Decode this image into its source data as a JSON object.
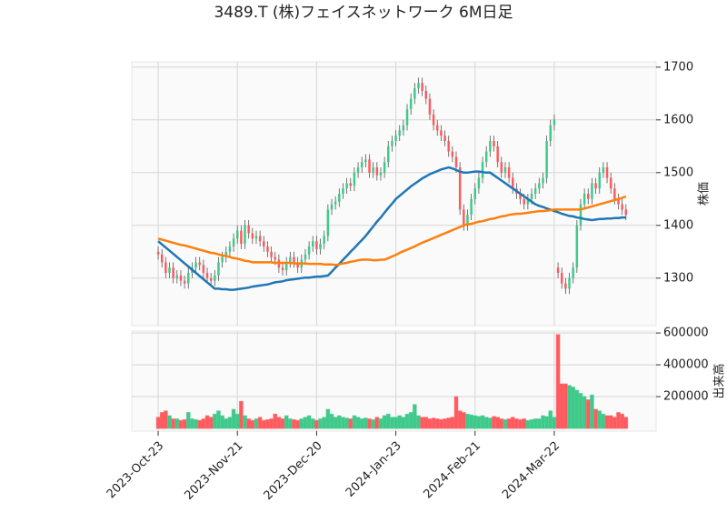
{
  "chart_data": {
    "type": "candlestick",
    "title": "3489.T (株)フェイスネットワーク 6M日足",
    "ylabel": "株価",
    "ylim": [
      1210,
      1710
    ],
    "yticks": [
      1300,
      1400,
      1500,
      1600,
      1700
    ],
    "xlim": [
      -7,
      132
    ],
    "xticks": [
      {
        "value": 0,
        "label": "2023-Oct-23"
      },
      {
        "value": 21,
        "label": "2023-Nov-21"
      },
      {
        "value": 42,
        "label": "2023-Dec-20"
      },
      {
        "value": 63,
        "label": "2024-Jan-23"
      },
      {
        "value": 84,
        "label": "2024-Feb-21"
      },
      {
        "value": 105,
        "label": "2024-Mar-22"
      }
    ],
    "grid": true,
    "up_color": "#3fc98a",
    "down_color": "#ff5a5f",
    "open": [
      1350,
      1345,
      1330,
      1310,
      1320,
      1300,
      1305,
      1295,
      1290,
      1310,
      1320,
      1330,
      1325,
      1310,
      1300,
      1295,
      1305,
      1330,
      1340,
      1350,
      1360,
      1375,
      1390,
      1365,
      1400,
      1385,
      1375,
      1380,
      1370,
      1360,
      1350,
      1340,
      1335,
      1320,
      1315,
      1330,
      1340,
      1330,
      1320,
      1335,
      1345,
      1360,
      1370,
      1355,
      1365,
      1380,
      1430,
      1440,
      1445,
      1460,
      1470,
      1480,
      1475,
      1500,
      1510,
      1520,
      1525,
      1500,
      1510,
      1495,
      1500,
      1520,
      1550,
      1560,
      1570,
      1580,
      1590,
      1620,
      1640,
      1660,
      1670,
      1655,
      1640,
      1610,
      1590,
      1580,
      1570,
      1560,
      1540,
      1530,
      1510,
      1430,
      1400,
      1420,
      1450,
      1470,
      1490,
      1520,
      1540,
      1560,
      1550,
      1520,
      1500,
      1510,
      1490,
      1470,
      1460,
      1450,
      1440,
      1450,
      1460,
      1470,
      1480,
      1490,
      1560,
      1590,
      1320,
      1310,
      1290,
      1280,
      1300,
      1320,
      1400,
      1440,
      1460,
      1450,
      1480,
      1470,
      1500,
      1510,
      1490,
      1470,
      1450,
      1440,
      1430
    ],
    "high": [
      1360,
      1355,
      1340,
      1330,
      1330,
      1315,
      1315,
      1305,
      1320,
      1330,
      1340,
      1340,
      1335,
      1320,
      1310,
      1315,
      1340,
      1350,
      1360,
      1370,
      1385,
      1400,
      1400,
      1410,
      1410,
      1395,
      1390,
      1390,
      1380,
      1370,
      1360,
      1350,
      1345,
      1330,
      1340,
      1350,
      1350,
      1340,
      1345,
      1355,
      1370,
      1380,
      1380,
      1375,
      1390,
      1440,
      1450,
      1455,
      1470,
      1480,
      1490,
      1490,
      1510,
      1520,
      1530,
      1535,
      1535,
      1520,
      1520,
      1510,
      1530,
      1560,
      1570,
      1580,
      1590,
      1600,
      1630,
      1650,
      1670,
      1680,
      1680,
      1665,
      1650,
      1620,
      1600,
      1590,
      1580,
      1570,
      1550,
      1540,
      1520,
      1440,
      1430,
      1460,
      1480,
      1500,
      1530,
      1550,
      1570,
      1570,
      1560,
      1530,
      1520,
      1520,
      1500,
      1480,
      1470,
      1460,
      1460,
      1470,
      1480,
      1490,
      1500,
      1570,
      1600,
      1610,
      1330,
      1320,
      1300,
      1310,
      1330,
      1410,
      1450,
      1470,
      1470,
      1490,
      1490,
      1510,
      1520,
      1520,
      1500,
      1480,
      1460,
      1450,
      1440
    ],
    "low": [
      1335,
      1320,
      1300,
      1300,
      1290,
      1290,
      1285,
      1280,
      1280,
      1300,
      1310,
      1315,
      1300,
      1290,
      1285,
      1285,
      1295,
      1320,
      1330,
      1340,
      1350,
      1365,
      1355,
      1355,
      1375,
      1365,
      1365,
      1360,
      1350,
      1340,
      1330,
      1325,
      1310,
      1305,
      1305,
      1320,
      1320,
      1310,
      1310,
      1325,
      1335,
      1350,
      1345,
      1345,
      1355,
      1370,
      1420,
      1430,
      1435,
      1450,
      1460,
      1465,
      1465,
      1490,
      1500,
      1510,
      1490,
      1490,
      1485,
      1485,
      1490,
      1510,
      1540,
      1550,
      1560,
      1570,
      1580,
      1610,
      1630,
      1650,
      1645,
      1630,
      1600,
      1580,
      1570,
      1560,
      1550,
      1530,
      1520,
      1500,
      1420,
      1390,
      1390,
      1410,
      1440,
      1460,
      1480,
      1510,
      1530,
      1540,
      1510,
      1490,
      1490,
      1480,
      1460,
      1450,
      1440,
      1430,
      1430,
      1440,
      1450,
      1460,
      1470,
      1480,
      1550,
      1580,
      1300,
      1280,
      1270,
      1270,
      1290,
      1310,
      1390,
      1430,
      1440,
      1440,
      1460,
      1460,
      1490,
      1480,
      1460,
      1440,
      1430,
      1420,
      1410
    ],
    "close": [
      1345,
      1330,
      1310,
      1320,
      1300,
      1305,
      1295,
      1290,
      1310,
      1320,
      1330,
      1325,
      1310,
      1300,
      1295,
      1305,
      1330,
      1340,
      1350,
      1360,
      1375,
      1390,
      1365,
      1400,
      1385,
      1375,
      1380,
      1370,
      1360,
      1350,
      1340,
      1335,
      1320,
      1315,
      1330,
      1340,
      1330,
      1320,
      1335,
      1345,
      1360,
      1370,
      1355,
      1365,
      1380,
      1430,
      1440,
      1445,
      1460,
      1470,
      1480,
      1475,
      1500,
      1510,
      1520,
      1525,
      1500,
      1510,
      1495,
      1500,
      1520,
      1550,
      1560,
      1570,
      1580,
      1590,
      1620,
      1640,
      1660,
      1670,
      1655,
      1640,
      1610,
      1590,
      1580,
      1570,
      1560,
      1540,
      1530,
      1510,
      1430,
      1400,
      1420,
      1450,
      1470,
      1490,
      1520,
      1540,
      1560,
      1550,
      1520,
      1500,
      1510,
      1490,
      1470,
      1460,
      1450,
      1440,
      1450,
      1460,
      1470,
      1480,
      1490,
      1560,
      1590,
      1600,
      1310,
      1290,
      1280,
      1300,
      1320,
      1400,
      1440,
      1460,
      1450,
      1480,
      1470,
      1500,
      1510,
      1490,
      1470,
      1450,
      1440,
      1430,
      1420
    ],
    "moving_averages": [
      {
        "color": "#1f77b4",
        "values": [
          1370,
          1364,
          1358,
          1352,
          1346,
          1340,
          1334,
          1328,
          1322,
          1316,
          1310,
          1304,
          1298,
          1292,
          1286,
          1280,
          1280,
          1279,
          1279,
          1278,
          1278,
          1279,
          1280,
          1281,
          1282,
          1284,
          1285,
          1286,
          1287,
          1288,
          1290,
          1292,
          1293,
          1294,
          1296,
          1297,
          1298,
          1299,
          1300,
          1301,
          1301,
          1302,
          1303,
          1303,
          1304,
          1305,
          1312,
          1320,
          1327,
          1335,
          1342,
          1350,
          1357,
          1365,
          1372,
          1380,
          1389,
          1398,
          1407,
          1415,
          1424,
          1433,
          1441,
          1450,
          1456,
          1462,
          1468,
          1474,
          1479,
          1484,
          1489,
          1493,
          1497,
          1500,
          1503,
          1506,
          1508,
          1510,
          1508,
          1505,
          1502,
          1500,
          1500,
          1501,
          1502,
          1502,
          1501,
          1500,
          1500,
          1495,
          1490,
          1485,
          1480,
          1475,
          1470,
          1465,
          1460,
          1455,
          1450,
          1445,
          1440,
          1437,
          1435,
          1432,
          1430,
          1427,
          1425,
          1422,
          1420,
          1418,
          1417,
          1415,
          1414,
          1412,
          1411,
          1410,
          1411,
          1412,
          1412,
          1413,
          1413,
          1414,
          1414,
          1415,
          1415
        ]
      },
      {
        "color": "#ff7f0e",
        "values": [
          1375,
          1373,
          1371,
          1369,
          1367,
          1365,
          1363,
          1362,
          1360,
          1358,
          1356,
          1354,
          1352,
          1350,
          1348,
          1347,
          1345,
          1343,
          1342,
          1340,
          1338,
          1337,
          1335,
          1333,
          1332,
          1330,
          1330,
          1330,
          1330,
          1330,
          1330,
          1329,
          1329,
          1329,
          1329,
          1329,
          1328,
          1328,
          1328,
          1328,
          1327,
          1327,
          1327,
          1327,
          1326,
          1326,
          1326,
          1325,
          1326,
          1328,
          1329,
          1331,
          1332,
          1334,
          1335,
          1335,
          1335,
          1334,
          1334,
          1335,
          1335,
          1338,
          1341,
          1344,
          1348,
          1351,
          1354,
          1357,
          1360,
          1364,
          1367,
          1370,
          1373,
          1376,
          1379,
          1382,
          1385,
          1388,
          1391,
          1394,
          1397,
          1400,
          1402,
          1403,
          1405,
          1407,
          1408,
          1410,
          1412,
          1413,
          1415,
          1417,
          1418,
          1420,
          1421,
          1422,
          1422,
          1423,
          1424,
          1425,
          1426,
          1427,
          1427,
          1428,
          1429,
          1430,
          1430,
          1430,
          1430,
          1430,
          1430,
          1430,
          1430,
          1432,
          1434,
          1436,
          1438,
          1440,
          1442,
          1444,
          1446,
          1448,
          1450,
          1452,
          1455
        ]
      }
    ],
    "volume": {
      "ylabel": "出来高",
      "ylim": [
        -17000,
        612000
      ],
      "yticks": [
        200000,
        400000,
        600000
      ],
      "values": [
        70000,
        100000,
        110000,
        80000,
        60000,
        60000,
        50000,
        55000,
        100000,
        60000,
        55000,
        50000,
        60000,
        80000,
        70000,
        90000,
        110000,
        80000,
        60000,
        70000,
        120000,
        90000,
        170000,
        80000,
        60000,
        50000,
        60000,
        70000,
        50000,
        55000,
        60000,
        90000,
        70000,
        60000,
        80000,
        60000,
        55000,
        50000,
        60000,
        70000,
        80000,
        60000,
        50000,
        60000,
        70000,
        120000,
        90000,
        70000,
        80000,
        70000,
        65000,
        60000,
        80000,
        70000,
        60000,
        65000,
        60000,
        55000,
        70000,
        60000,
        80000,
        90000,
        70000,
        70000,
        80000,
        70000,
        90000,
        100000,
        150000,
        80000,
        70000,
        70000,
        60000,
        65000,
        60000,
        55000,
        60000,
        65000,
        70000,
        200000,
        110000,
        100000,
        90000,
        85000,
        80000,
        75000,
        80000,
        70000,
        65000,
        75000,
        70000,
        60000,
        55000,
        60000,
        70000,
        60000,
        55000,
        60000,
        50000,
        55000,
        60000,
        60000,
        80000,
        75000,
        110000,
        70000,
        590000,
        280000,
        280000,
        270000,
        260000,
        240000,
        220000,
        200000,
        180000,
        210000,
        120000,
        110000,
        90000,
        80000,
        80000,
        70000,
        100000,
        90000,
        70000
      ]
    }
  }
}
